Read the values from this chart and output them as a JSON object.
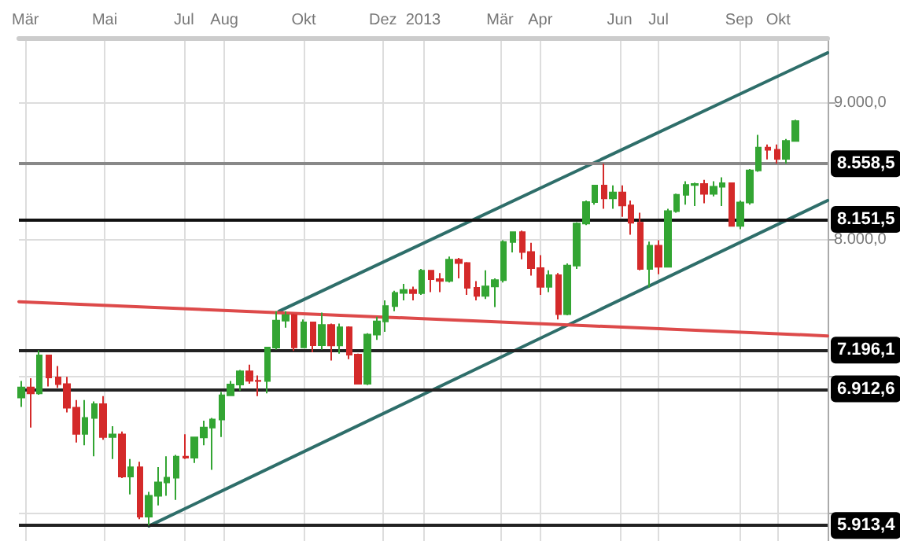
{
  "chart_data": {
    "type": "candlestick",
    "grid": true,
    "line_style": "solid",
    "xlim": [
      "2012-02-25",
      "2013-11-08"
    ],
    "xticks": [
      {
        "value": "2012-03-01",
        "label": "Mär"
      },
      {
        "value": "2012-05-01",
        "label": "Mai"
      },
      {
        "value": "2012-07-01",
        "label": "Jul"
      },
      {
        "value": "2012-08-01",
        "label": "Aug"
      },
      {
        "value": "2012-10-01",
        "label": "Okt"
      },
      {
        "value": "2012-12-01",
        "label": "Dez"
      },
      {
        "value": "2013-01-01",
        "label": "2013"
      },
      {
        "value": "2013-03-01",
        "label": "Mär"
      },
      {
        "value": "2013-04-01",
        "label": "Apr"
      },
      {
        "value": "2013-06-01",
        "label": "Jun"
      },
      {
        "value": "2013-07-01",
        "label": "Jul"
      },
      {
        "value": "2013-09-01",
        "label": "Sep"
      },
      {
        "value": "2013-10-01",
        "label": "Okt"
      }
    ],
    "ylim": [
      5800,
      9480
    ],
    "yticks": [
      {
        "value": 6000,
        "label": null
      },
      {
        "value": 7000,
        "label": null
      },
      {
        "value": 8000,
        "label": "8.000,0"
      },
      {
        "value": 9000,
        "label": "9.000,0"
      }
    ],
    "ref_lines": [
      {
        "axis": "y",
        "value": 8558.5,
        "label": "8.558,5",
        "color": "#888888"
      },
      {
        "axis": "y",
        "value": 8151.5,
        "label": "8.151,5",
        "color": "#111111"
      },
      {
        "axis": "y",
        "value": 7196.1,
        "label": "7.196,1",
        "color": "#222222"
      },
      {
        "axis": "y",
        "value": 6912.6,
        "label": "6.912,6",
        "color": "#222222"
      },
      {
        "axis": "y",
        "value": 5913.4,
        "label": "5.913,4",
        "color": "#222222"
      }
    ],
    "series": [
      {
        "colors": [
          "#33a533",
          "#d42a2a",
          "#33a533",
          "#d42a2a",
          "#d42a2a",
          "#d42a2a",
          "#d42a2a",
          "#33a533",
          "#33a533",
          "#d42a2a",
          "#33a533",
          "#d42a2a",
          "#33a533",
          "#d42a2a",
          "#33a533",
          "#33a533",
          "#33a533",
          "#33a533",
          "#d42a2a",
          "#33a533",
          "#33a533",
          "#33a533",
          "#33a533",
          "#33a533",
          "#33a533",
          "#d42a2a",
          "#d42a2a",
          "#33a533",
          "#33a533",
          "#33a533",
          "#d42a2a",
          "#33a533",
          "#d42a2a",
          "#33a533",
          "#d42a2a",
          "#33a533",
          "#d42a2a",
          "#d42a2a",
          "#33a533",
          "#33a533",
          "#33a533",
          "#33a533",
          "#33a533",
          "#d42a2a",
          "#33a533",
          "#d42a2a",
          "#d42a2a",
          "#33a533",
          "#d42a2a",
          "#d42a2a",
          "#d42a2a",
          "#33a533",
          "#33a533",
          "#33a533",
          "#33a533",
          "#d42a2a",
          "#d42a2a",
          "#d42a2a",
          "#33a533",
          "#d42a2a",
          "#33a533",
          "#33a533",
          "#33a533",
          "#33a533",
          "#d42a2a",
          "#33a533",
          "#d42a2a",
          "#d42a2a",
          "#d42a2a",
          "#33a533",
          "#d42a2a",
          "#33a533",
          "#33a533",
          "#33a533",
          "#33a533",
          "#d42a2a",
          "#33a533",
          "#33a533",
          "#d42a2a",
          "#33a533",
          "#33a533",
          "#33a533",
          "#d42a2a",
          "#d42a2a",
          "#33a533",
          "#33a533"
        ],
        "x": [
          "2012-02-27",
          "2012-03-05",
          "2012-03-12",
          "2012-03-19",
          "2012-03-26",
          "2012-04-02",
          "2012-04-09",
          "2012-04-16",
          "2012-04-23",
          "2012-04-30",
          "2012-05-07",
          "2012-05-14",
          "2012-05-21",
          "2012-05-28",
          "2012-06-04",
          "2012-06-11",
          "2012-06-18",
          "2012-06-25",
          "2012-07-02",
          "2012-07-09",
          "2012-07-16",
          "2012-07-23",
          "2012-07-30",
          "2012-08-06",
          "2012-08-13",
          "2012-08-20",
          "2012-08-27",
          "2012-09-03",
          "2012-09-10",
          "2012-09-17",
          "2012-09-24",
          "2012-10-01",
          "2012-10-08",
          "2012-10-15",
          "2012-10-22",
          "2012-10-29",
          "2012-11-05",
          "2012-11-12",
          "2012-11-19",
          "2012-11-26",
          "2012-12-03",
          "2012-12-10",
          "2012-12-17",
          "2012-12-24",
          "2012-12-31",
          "2013-01-07",
          "2013-01-14",
          "2013-01-21",
          "2013-01-28",
          "2013-02-04",
          "2013-02-11",
          "2013-02-18",
          "2013-02-25",
          "2013-03-04",
          "2013-03-11",
          "2013-03-18",
          "2013-03-25",
          "2013-04-01",
          "2013-04-08",
          "2013-04-15",
          "2013-04-22",
          "2013-04-29",
          "2013-05-06",
          "2013-05-13",
          "2013-05-20",
          "2013-05-27",
          "2013-06-03",
          "2013-06-10",
          "2013-06-17",
          "2013-06-24",
          "2013-07-01",
          "2013-07-08",
          "2013-07-15",
          "2013-07-22",
          "2013-07-29",
          "2013-08-05",
          "2013-08-12",
          "2013-08-19",
          "2013-08-26",
          "2013-09-02",
          "2013-09-09",
          "2013-09-16",
          "2013-09-23",
          "2013-09-30",
          "2013-10-07",
          "2013-10-14"
        ],
        "ohlc": [
          [
            6850,
            6970,
            6780,
            6922
          ],
          [
            6922,
            6990,
            6630,
            6880
          ],
          [
            6880,
            7194,
            6870,
            7157
          ],
          [
            7157,
            7160,
            6930,
            6996
          ],
          [
            6996,
            7080,
            6920,
            6947
          ],
          [
            6947,
            7000,
            6740,
            6775
          ],
          [
            6775,
            6830,
            6520,
            6583
          ],
          [
            6583,
            6830,
            6500,
            6700
          ],
          [
            6700,
            6820,
            6420,
            6801
          ],
          [
            6801,
            6860,
            6540,
            6561
          ],
          [
            6561,
            6640,
            6400,
            6579
          ],
          [
            6579,
            6600,
            6260,
            6271
          ],
          [
            6271,
            6400,
            6140,
            6339
          ],
          [
            6339,
            6380,
            5960,
            5978
          ],
          [
            5978,
            6160,
            5914,
            6130
          ],
          [
            6130,
            6340,
            6060,
            6229
          ],
          [
            6229,
            6420,
            6130,
            6263
          ],
          [
            6263,
            6430,
            6100,
            6416
          ],
          [
            6416,
            6580,
            6400,
            6410
          ],
          [
            6410,
            6560,
            6370,
            6557
          ],
          [
            6557,
            6680,
            6500,
            6630
          ],
          [
            6630,
            6700,
            6320,
            6689
          ],
          [
            6689,
            6890,
            6560,
            6865
          ],
          [
            6865,
            6970,
            6860,
            6944
          ],
          [
            6944,
            7050,
            6900,
            7040
          ],
          [
            7040,
            7090,
            6950,
            6971
          ],
          [
            6971,
            7010,
            6860,
            6970
          ],
          [
            6970,
            7220,
            6880,
            7214
          ],
          [
            7214,
            7480,
            7200,
            7412
          ],
          [
            7412,
            7480,
            7360,
            7451
          ],
          [
            7451,
            7460,
            7190,
            7216
          ],
          [
            7216,
            7420,
            7210,
            7398
          ],
          [
            7398,
            7400,
            7180,
            7232
          ],
          [
            7232,
            7470,
            7200,
            7380
          ],
          [
            7380,
            7390,
            7120,
            7231
          ],
          [
            7231,
            7390,
            7170,
            7363
          ],
          [
            7363,
            7370,
            7130,
            7163
          ],
          [
            7163,
            7170,
            6945,
            6950
          ],
          [
            6950,
            7320,
            6940,
            7309
          ],
          [
            7309,
            7440,
            7270,
            7405
          ],
          [
            7405,
            7560,
            7330,
            7518
          ],
          [
            7518,
            7630,
            7480,
            7614
          ],
          [
            7614,
            7680,
            7560,
            7636
          ],
          [
            7636,
            7660,
            7560,
            7612
          ],
          [
            7612,
            7790,
            7600,
            7776
          ],
          [
            7776,
            7780,
            7620,
            7715
          ],
          [
            7715,
            7760,
            7620,
            7702
          ],
          [
            7702,
            7880,
            7690,
            7857
          ],
          [
            7857,
            7870,
            7720,
            7833
          ],
          [
            7833,
            7840,
            7600,
            7652
          ],
          [
            7652,
            7700,
            7560,
            7593
          ],
          [
            7593,
            7780,
            7570,
            7661
          ],
          [
            7661,
            7720,
            7510,
            7708
          ],
          [
            7708,
            8000,
            7690,
            7986
          ],
          [
            7986,
            8060,
            7910,
            8058
          ],
          [
            8058,
            8070,
            7860,
            7913
          ],
          [
            7913,
            7980,
            7740,
            7795
          ],
          [
            7795,
            7890,
            7600,
            7658
          ],
          [
            7658,
            7780,
            7620,
            7744
          ],
          [
            7744,
            7760,
            7420,
            7459
          ],
          [
            7459,
            7830,
            7450,
            7814
          ],
          [
            7814,
            8130,
            7790,
            8122
          ],
          [
            8122,
            8290,
            8110,
            8278
          ],
          [
            8278,
            8400,
            8260,
            8399
          ],
          [
            8399,
            8558,
            8230,
            8305
          ],
          [
            8305,
            8400,
            8230,
            8348
          ],
          [
            8348,
            8400,
            8170,
            8254
          ],
          [
            8254,
            8290,
            8040,
            8127
          ],
          [
            8127,
            8200,
            7780,
            7789
          ],
          [
            7789,
            7990,
            7655,
            7959
          ],
          [
            7959,
            8000,
            7750,
            7806
          ],
          [
            7806,
            8230,
            7800,
            8212
          ],
          [
            8212,
            8340,
            8200,
            8331
          ],
          [
            8331,
            8430,
            8260,
            8404
          ],
          [
            8404,
            8420,
            8250,
            8410
          ],
          [
            8410,
            8440,
            8270,
            8338
          ],
          [
            8338,
            8430,
            8320,
            8391
          ],
          [
            8391,
            8460,
            8250,
            8416
          ],
          [
            8416,
            8420,
            8100,
            8104
          ],
          [
            8104,
            8290,
            8080,
            8276
          ],
          [
            8276,
            8520,
            8260,
            8510
          ],
          [
            8510,
            8770,
            8500,
            8676
          ],
          [
            8676,
            8700,
            8590,
            8661
          ],
          [
            8661,
            8700,
            8560,
            8594
          ],
          [
            8594,
            8740,
            8560,
            8725
          ],
          [
            8725,
            8880,
            8720,
            8870
          ]
        ]
      },
      {
        "type": "line",
        "color": "#2e6e6a",
        "x": [
          "2012-09-12",
          "2013-11-08"
        ],
        "values": [
          7480,
          9370
        ]
      },
      {
        "type": "line",
        "color": "#2e6e6a",
        "x": [
          "2012-06-04",
          "2013-11-08"
        ],
        "values": [
          5910,
          8290
        ]
      },
      {
        "type": "line",
        "color": "#dd4a4a",
        "x": [
          "2012-02-25",
          "2013-11-08"
        ],
        "values": [
          7550,
          7300
        ]
      }
    ]
  }
}
